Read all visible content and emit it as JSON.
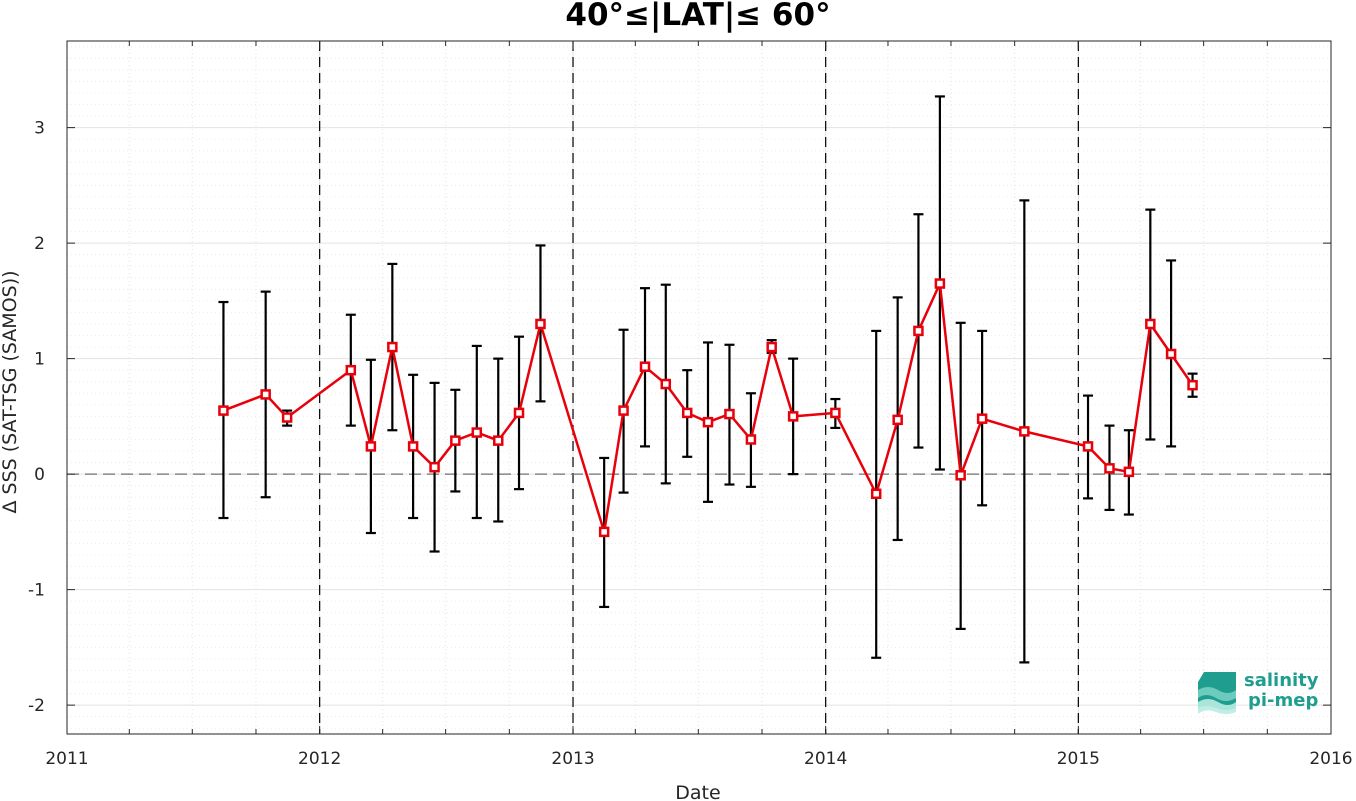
{
  "chart_data": {
    "type": "line",
    "title": "40°≤|LAT|≤ 60°",
    "xlabel": "Date",
    "ylabel": "Δ SSS (SAT-TSG (SAMOS))",
    "xlim": [
      "2011-01-01",
      "2016-01-01"
    ],
    "ylim": [
      -2.25,
      3.75
    ],
    "x_ticks": [
      "2011",
      "2012",
      "2013",
      "2014",
      "2015",
      "2016"
    ],
    "y_ticks": [
      "-2",
      "-1",
      "0",
      "1",
      "2",
      "3"
    ],
    "grid": true,
    "reference_line_y": 0,
    "year_dividers": [
      "2012",
      "2013",
      "2014",
      "2015"
    ],
    "series": [
      {
        "color": "#e8000b",
        "marker": "square",
        "points": [
          {
            "x": "2011-08-15",
            "y": 0.55,
            "lo": -0.38,
            "hi": 1.49
          },
          {
            "x": "2011-10-15",
            "y": 0.69,
            "lo": -0.2,
            "hi": 1.58
          },
          {
            "x": "2011-11-15",
            "y": 0.49,
            "lo": 0.42,
            "hi": 0.55
          },
          {
            "x": "2012-02-15",
            "y": 0.9,
            "lo": 0.42,
            "hi": 1.38
          },
          {
            "x": "2012-03-15",
            "y": 0.24,
            "lo": -0.51,
            "hi": 0.99
          },
          {
            "x": "2012-04-15",
            "y": 1.1,
            "lo": 0.38,
            "hi": 1.82
          },
          {
            "x": "2012-05-15",
            "y": 0.24,
            "lo": -0.38,
            "hi": 0.86
          },
          {
            "x": "2012-06-15",
            "y": 0.06,
            "lo": -0.67,
            "hi": 0.79
          },
          {
            "x": "2012-07-15",
            "y": 0.29,
            "lo": -0.15,
            "hi": 0.73
          },
          {
            "x": "2012-08-15",
            "y": 0.36,
            "lo": -0.38,
            "hi": 1.11
          },
          {
            "x": "2012-09-15",
            "y": 0.29,
            "lo": -0.41,
            "hi": 1.0
          },
          {
            "x": "2012-10-15",
            "y": 0.53,
            "lo": -0.13,
            "hi": 1.19
          },
          {
            "x": "2012-11-15",
            "y": 1.3,
            "lo": 0.63,
            "hi": 1.98
          },
          {
            "x": "2013-02-15",
            "y": -0.5,
            "lo": -1.15,
            "hi": 0.14
          },
          {
            "x": "2013-03-15",
            "y": 0.55,
            "lo": -0.16,
            "hi": 1.25
          },
          {
            "x": "2013-04-15",
            "y": 0.93,
            "lo": 0.24,
            "hi": 1.61
          },
          {
            "x": "2013-05-15",
            "y": 0.78,
            "lo": -0.08,
            "hi": 1.64
          },
          {
            "x": "2013-06-15",
            "y": 0.53,
            "lo": 0.15,
            "hi": 0.9
          },
          {
            "x": "2013-07-15",
            "y": 0.45,
            "lo": -0.24,
            "hi": 1.14
          },
          {
            "x": "2013-08-15",
            "y": 0.52,
            "lo": -0.09,
            "hi": 1.12
          },
          {
            "x": "2013-09-15",
            "y": 0.3,
            "lo": -0.11,
            "hi": 0.7
          },
          {
            "x": "2013-10-15",
            "y": 1.1,
            "lo": 1.05,
            "hi": 1.16
          },
          {
            "x": "2013-11-15",
            "y": 0.5,
            "lo": 0.0,
            "hi": 1.0
          },
          {
            "x": "2014-01-15",
            "y": 0.53,
            "lo": 0.4,
            "hi": 0.65
          },
          {
            "x": "2014-03-15",
            "y": -0.17,
            "lo": -1.59,
            "hi": 1.24
          },
          {
            "x": "2014-04-15",
            "y": 0.47,
            "lo": -0.57,
            "hi": 1.53
          },
          {
            "x": "2014-05-15",
            "y": 1.24,
            "lo": 0.23,
            "hi": 2.25
          },
          {
            "x": "2014-06-15",
            "y": 1.65,
            "lo": 0.04,
            "hi": 3.27
          },
          {
            "x": "2014-07-15",
            "y": -0.01,
            "lo": -1.34,
            "hi": 1.31
          },
          {
            "x": "2014-08-15",
            "y": 0.48,
            "lo": -0.27,
            "hi": 1.24
          },
          {
            "x": "2014-10-15",
            "y": 0.37,
            "lo": -1.63,
            "hi": 2.37
          },
          {
            "x": "2015-01-15",
            "y": 0.24,
            "lo": -0.21,
            "hi": 0.68
          },
          {
            "x": "2015-02-15",
            "y": 0.05,
            "lo": -0.31,
            "hi": 0.42
          },
          {
            "x": "2015-03-15",
            "y": 0.02,
            "lo": -0.35,
            "hi": 0.38
          },
          {
            "x": "2015-04-15",
            "y": 1.3,
            "lo": 0.3,
            "hi": 2.29
          },
          {
            "x": "2015-05-15",
            "y": 1.04,
            "lo": 0.24,
            "hi": 1.85
          },
          {
            "x": "2015-06-15",
            "y": 0.77,
            "lo": 0.67,
            "hi": 0.87
          }
        ]
      }
    ]
  },
  "logo": {
    "line1": "salinity",
    "line2": "pi-mep",
    "color": "#1f9e8f"
  }
}
